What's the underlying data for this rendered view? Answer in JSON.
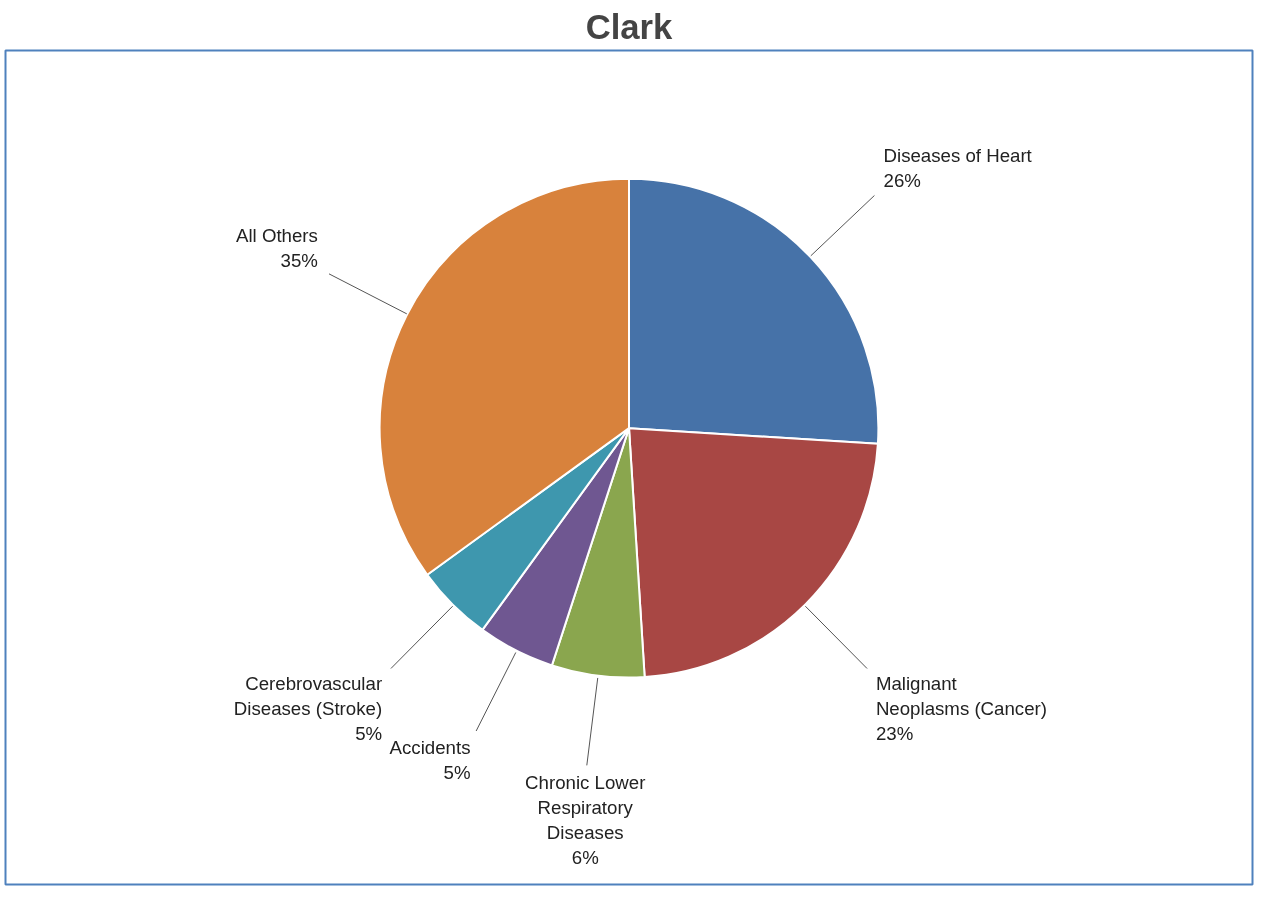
{
  "chart_data": {
    "type": "pie",
    "title": "Clark",
    "categories": [
      "Diseases of Heart",
      "Malignant Neoplasms (Cancer)",
      "Chronic Lower Respiratory Diseases",
      "Accidents",
      "Cerebrovascular Diseases (Stroke)",
      "All Others"
    ],
    "values": [
      26,
      23,
      6,
      5,
      5,
      35
    ],
    "value_labels": [
      "26%",
      "23%",
      "6%",
      "5%",
      "5%",
      "35%"
    ],
    "colors": [
      "#4672a8",
      "#a84744",
      "#8aa64e",
      "#6f5791",
      "#3e97ae",
      "#d8823c"
    ]
  }
}
